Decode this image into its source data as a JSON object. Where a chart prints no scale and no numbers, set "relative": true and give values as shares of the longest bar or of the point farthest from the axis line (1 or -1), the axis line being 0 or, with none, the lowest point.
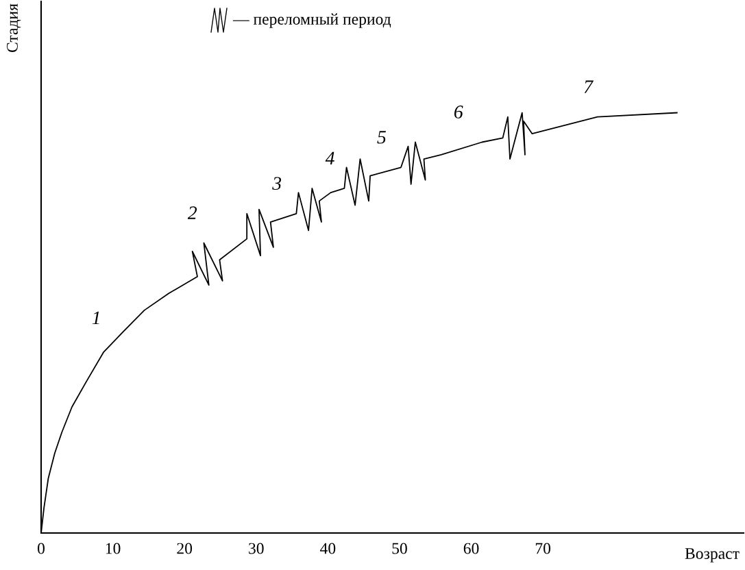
{
  "chart_data": {
    "type": "line",
    "relative": true,
    "xlabel": "Возраст",
    "ylabel": "Стадия",
    "xlim": [
      0,
      98
    ],
    "xticks": [
      0,
      10,
      20,
      30,
      40,
      50,
      60,
      70
    ],
    "series": [
      {
        "color": "#000000",
        "x": [
          0,
          0.4,
          1.0,
          1.9,
          2.9,
          4.3,
          6.3,
          8.7,
          11.5,
          14.4,
          17.8,
          21.8,
          21.1,
          23.4,
          22.7,
          25.3,
          24.9,
          28.7,
          28.7,
          30.6,
          30.4,
          32.4,
          32.0,
          35.6,
          35.9,
          37.3,
          37.8,
          39.1,
          38.8,
          40.4,
          42.3,
          42.6,
          43.8,
          44.5,
          45.7,
          45.9,
          50.2,
          51.2,
          51.6,
          52.2,
          53.6,
          53.4,
          55.8,
          61.5,
          64.4,
          65.1,
          65.4,
          67.1,
          67.5,
          67.3,
          68.5,
          77.6,
          88.7
        ],
        "values": [
          0,
          0.06,
          0.13,
          0.19,
          0.24,
          0.3,
          0.36,
          0.43,
          0.48,
          0.53,
          0.57,
          0.61,
          0.67,
          0.59,
          0.69,
          0.6,
          0.65,
          0.7,
          0.76,
          0.66,
          0.77,
          0.68,
          0.74,
          0.76,
          0.81,
          0.72,
          0.82,
          0.74,
          0.79,
          0.81,
          0.82,
          0.87,
          0.78,
          0.89,
          0.79,
          0.85,
          0.87,
          0.92,
          0.83,
          0.93,
          0.84,
          0.89,
          0.9,
          0.93,
          0.94,
          0.99,
          0.89,
          1.0,
          0.9,
          0.98,
          0.95,
          0.99,
          1.0
        ]
      }
    ],
    "annotations": [
      "— переломный период",
      {
        "text": "1",
        "x": 9.3,
        "y": 0.44
      },
      {
        "text": "2",
        "x": 22.7,
        "y": 0.69
      },
      {
        "text": "3",
        "x": 34.5,
        "y": 0.76
      },
      {
        "text": "4",
        "x": 41.9,
        "y": 0.82
      },
      {
        "text": "5",
        "x": 49.1,
        "y": 0.87
      },
      {
        "text": "6",
        "x": 59.8,
        "y": 0.93
      },
      {
        "text": "7",
        "x": 77.9,
        "y": 0.99
      }
    ]
  }
}
